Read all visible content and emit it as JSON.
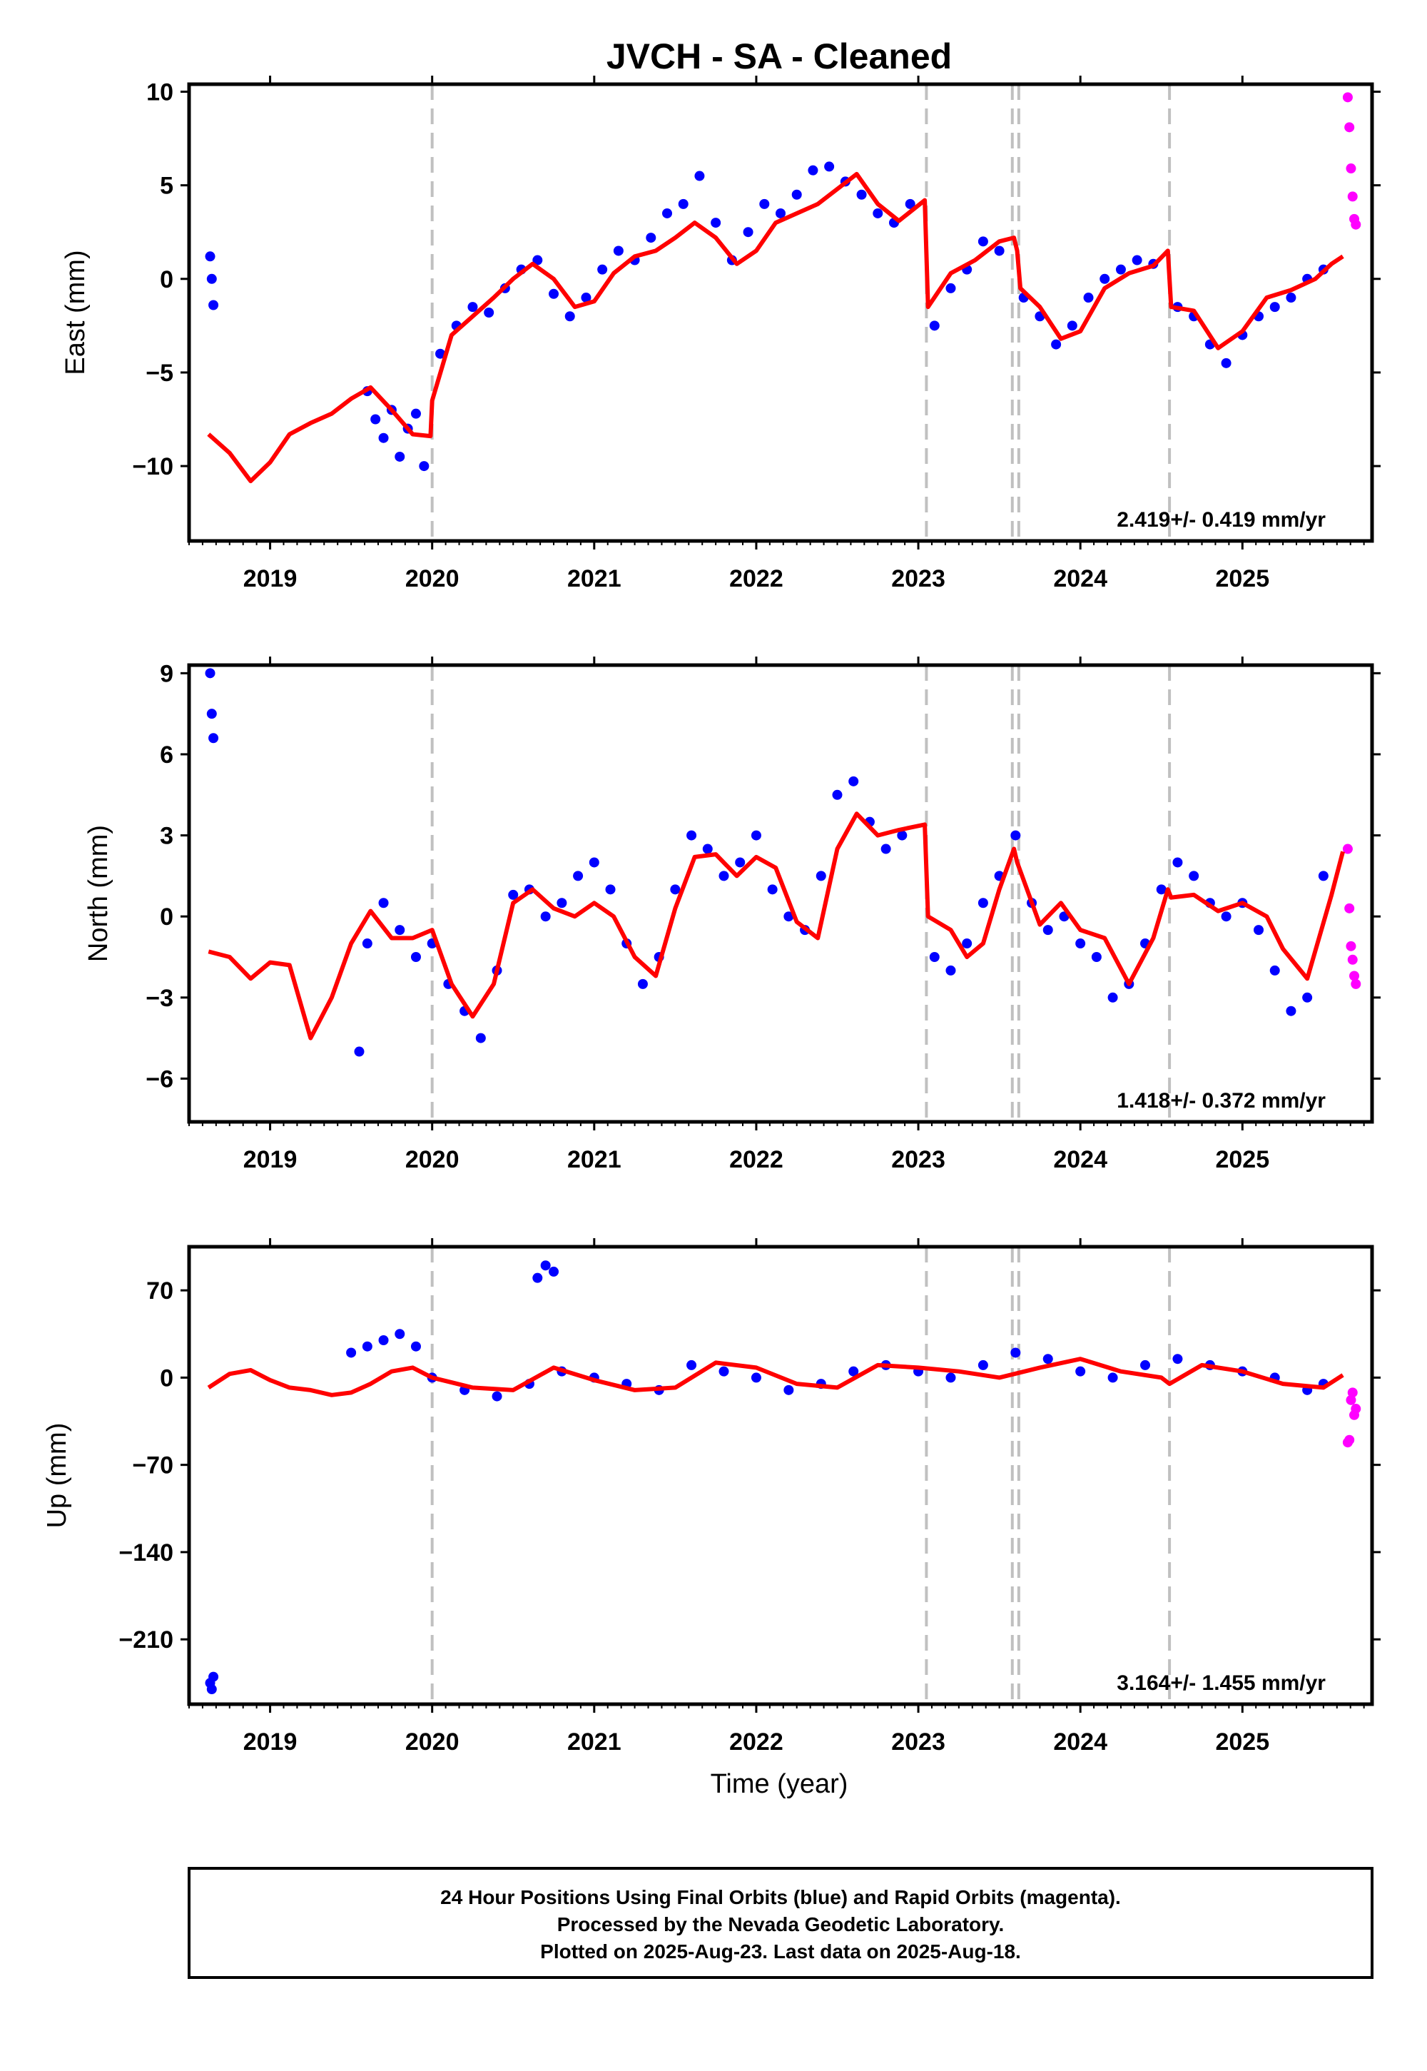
{
  "title": "JVCH  - SA - Cleaned",
  "xlabel": "Time (year)",
  "footer": {
    "line1": "24 Hour Positions Using Final Orbits (blue) and Rapid Orbits (magenta).",
    "line2": "Processed by the Nevada Geodetic Laboratory.",
    "line3": "Plotted on 2025-Aug-23. Last data on 2025-Aug-18."
  },
  "colors": {
    "final_orbits": "#0000ff",
    "rapid_orbits": "#ff00ff",
    "model": "#ff0000",
    "event_lines": "#c0c0c0"
  },
  "chart_data": [
    {
      "type": "scatter",
      "name": "east",
      "ylabel": "East (mm)",
      "rate": "2.419+/- 0.419 mm/yr",
      "xlim": [
        2018.5,
        2025.8
      ],
      "ylim": [
        -14,
        10.4
      ],
      "yticks": [
        10,
        5,
        0,
        -5,
        -10
      ],
      "ytick_labels": [
        "10",
        "5",
        "0",
        "−5",
        "−10"
      ],
      "xticks": [
        2019,
        2020,
        2021,
        2022,
        2023,
        2024,
        2025
      ],
      "event_lines": [
        2020.0,
        2023.05,
        2023.58,
        2023.62,
        2024.55
      ],
      "series": [
        {
          "name": "model",
          "x": [
            2018.62,
            2018.75,
            2018.88,
            2019.0,
            2019.12,
            2019.25,
            2019.38,
            2019.5,
            2019.62,
            2019.75,
            2019.88,
            2019.99,
            2020.0,
            2020.12,
            2020.25,
            2020.38,
            2020.5,
            2020.62,
            2020.75,
            2020.88,
            2021.0,
            2021.12,
            2021.25,
            2021.38,
            2021.5,
            2021.62,
            2021.75,
            2021.88,
            2022.0,
            2022.12,
            2022.25,
            2022.38,
            2022.5,
            2022.62,
            2022.75,
            2022.88,
            2023.04,
            2023.06,
            2023.2,
            2023.35,
            2023.5,
            2023.59,
            2023.61,
            2023.63,
            2023.75,
            2023.88,
            2024.0,
            2024.15,
            2024.3,
            2024.45,
            2024.54,
            2024.56,
            2024.7,
            2024.85,
            2025.0,
            2025.15,
            2025.3,
            2025.45,
            2025.55,
            2025.62
          ],
          "y": [
            -8.3,
            -9.3,
            -10.8,
            -9.8,
            -8.3,
            -7.7,
            -7.2,
            -6.4,
            -5.8,
            -7.0,
            -8.3,
            -8.4,
            -6.5,
            -3.0,
            -2.0,
            -1.0,
            0.0,
            0.8,
            0.0,
            -1.5,
            -1.2,
            0.3,
            1.2,
            1.5,
            2.2,
            3.0,
            2.2,
            0.8,
            1.5,
            3.0,
            3.5,
            4.0,
            4.8,
            5.6,
            4.0,
            3.1,
            4.2,
            -1.5,
            0.3,
            1.0,
            2.0,
            2.2,
            1.5,
            -0.5,
            -1.5,
            -3.2,
            -2.8,
            -0.5,
            0.3,
            0.7,
            1.5,
            -1.5,
            -1.7,
            -3.7,
            -2.8,
            -1.0,
            -0.6,
            0.0,
            0.8,
            1.2
          ]
        },
        {
          "name": "final_orbits",
          "x": [
            2018.63,
            2018.64,
            2018.65,
            2019.6,
            2019.65,
            2019.7,
            2019.75,
            2019.8,
            2019.85,
            2019.9,
            2019.95,
            2020.05,
            2020.15,
            2020.25,
            2020.35,
            2020.45,
            2020.55,
            2020.65,
            2020.75,
            2020.85,
            2020.95,
            2021.05,
            2021.15,
            2021.25,
            2021.35,
            2021.45,
            2021.55,
            2021.65,
            2021.75,
            2021.85,
            2021.95,
            2022.05,
            2022.15,
            2022.25,
            2022.35,
            2022.45,
            2022.55,
            2022.65,
            2022.75,
            2022.85,
            2022.95,
            2023.1,
            2023.2,
            2023.3,
            2023.4,
            2023.5,
            2023.65,
            2023.75,
            2023.85,
            2023.95,
            2024.05,
            2024.15,
            2024.25,
            2024.35,
            2024.45,
            2024.6,
            2024.7,
            2024.8,
            2024.9,
            2025.0,
            2025.1,
            2025.2,
            2025.3,
            2025.4,
            2025.5
          ],
          "y": [
            1.2,
            0.0,
            -1.4,
            -6.0,
            -7.5,
            -8.5,
            -7.0,
            -9.5,
            -8.0,
            -7.2,
            -10.0,
            -4.0,
            -2.5,
            -1.5,
            -1.8,
            -0.5,
            0.5,
            1.0,
            -0.8,
            -2.0,
            -1.0,
            0.5,
            1.5,
            1.0,
            2.2,
            3.5,
            4.0,
            5.5,
            3.0,
            1.0,
            2.5,
            4.0,
            3.5,
            4.5,
            5.8,
            6.0,
            5.2,
            4.5,
            3.5,
            3.0,
            4.0,
            -2.5,
            -0.5,
            0.5,
            2.0,
            1.5,
            -1.0,
            -2.0,
            -3.5,
            -2.5,
            -1.0,
            0.0,
            0.5,
            1.0,
            0.8,
            -1.5,
            -2.0,
            -3.5,
            -4.5,
            -3.0,
            -2.0,
            -1.5,
            -1.0,
            0.0,
            0.5
          ]
        },
        {
          "name": "rapid_orbits",
          "x": [
            2025.65,
            2025.66,
            2025.67,
            2025.68,
            2025.69,
            2025.7
          ],
          "y": [
            9.7,
            8.1,
            5.9,
            4.4,
            3.2,
            2.9
          ]
        }
      ]
    },
    {
      "type": "scatter",
      "name": "north",
      "ylabel": "North (mm)",
      "rate": "1.418+/- 0.372 mm/yr",
      "xlim": [
        2018.5,
        2025.8
      ],
      "ylim": [
        -7.6,
        9.3
      ],
      "yticks": [
        9,
        6,
        3,
        0,
        -3,
        -6
      ],
      "ytick_labels": [
        "9",
        "6",
        "3",
        "0",
        "−3",
        "−6"
      ],
      "xticks": [
        2019,
        2020,
        2021,
        2022,
        2023,
        2024,
        2025
      ],
      "event_lines": [
        2020.0,
        2023.05,
        2023.58,
        2023.62,
        2024.55
      ],
      "series": [
        {
          "name": "model",
          "x": [
            2018.62,
            2018.75,
            2018.88,
            2019.0,
            2019.12,
            2019.25,
            2019.38,
            2019.5,
            2019.62,
            2019.75,
            2019.88,
            2020.0,
            2020.12,
            2020.25,
            2020.38,
            2020.5,
            2020.62,
            2020.75,
            2020.88,
            2021.0,
            2021.12,
            2021.25,
            2021.38,
            2021.5,
            2021.62,
            2021.75,
            2021.88,
            2022.0,
            2022.12,
            2022.25,
            2022.38,
            2022.5,
            2022.62,
            2022.75,
            2022.88,
            2023.04,
            2023.06,
            2023.2,
            2023.3,
            2023.4,
            2023.5,
            2023.59,
            2023.61,
            2023.75,
            2023.88,
            2024.0,
            2024.15,
            2024.3,
            2024.45,
            2024.54,
            2024.56,
            2024.7,
            2024.85,
            2025.0,
            2025.15,
            2025.25,
            2025.4,
            2025.55,
            2025.62
          ],
          "y": [
            -1.3,
            -1.5,
            -2.3,
            -1.7,
            -1.8,
            -4.5,
            -3.0,
            -1.0,
            0.2,
            -0.8,
            -0.8,
            -0.5,
            -2.5,
            -3.7,
            -2.5,
            0.5,
            1.0,
            0.3,
            0.0,
            0.5,
            0.0,
            -1.5,
            -2.2,
            0.3,
            2.2,
            2.3,
            1.5,
            2.2,
            1.8,
            -0.2,
            -0.8,
            2.5,
            3.8,
            3.0,
            3.2,
            3.4,
            0.0,
            -0.5,
            -1.5,
            -1.0,
            1.0,
            2.5,
            2.0,
            -0.3,
            0.5,
            -0.5,
            -0.8,
            -2.5,
            -0.8,
            1.0,
            0.7,
            0.8,
            0.2,
            0.5,
            0.0,
            -1.2,
            -2.3,
            0.8,
            2.4
          ]
        },
        {
          "name": "final_orbits",
          "x": [
            2018.63,
            2018.64,
            2018.65,
            2019.55,
            2019.6,
            2019.7,
            2019.8,
            2019.9,
            2020.0,
            2020.1,
            2020.2,
            2020.3,
            2020.4,
            2020.5,
            2020.6,
            2020.7,
            2020.8,
            2020.9,
            2021.0,
            2021.1,
            2021.2,
            2021.3,
            2021.4,
            2021.5,
            2021.6,
            2021.7,
            2021.8,
            2021.9,
            2022.0,
            2022.1,
            2022.2,
            2022.3,
            2022.4,
            2022.5,
            2022.6,
            2022.7,
            2022.8,
            2022.9,
            2023.1,
            2023.2,
            2023.3,
            2023.4,
            2023.5,
            2023.6,
            2023.7,
            2023.8,
            2023.9,
            2024.0,
            2024.1,
            2024.2,
            2024.3,
            2024.4,
            2024.5,
            2024.6,
            2024.7,
            2024.8,
            2024.9,
            2025.0,
            2025.1,
            2025.2,
            2025.3,
            2025.4,
            2025.5
          ],
          "y": [
            9.0,
            7.5,
            6.6,
            -5.0,
            -1.0,
            0.5,
            -0.5,
            -1.5,
            -1.0,
            -2.5,
            -3.5,
            -4.5,
            -2.0,
            0.8,
            1.0,
            0.0,
            0.5,
            1.5,
            2.0,
            1.0,
            -1.0,
            -2.5,
            -1.5,
            1.0,
            3.0,
            2.5,
            1.5,
            2.0,
            3.0,
            1.0,
            0.0,
            -0.5,
            1.5,
            4.5,
            5.0,
            3.5,
            2.5,
            3.0,
            -1.5,
            -2.0,
            -1.0,
            0.5,
            1.5,
            3.0,
            0.5,
            -0.5,
            0.0,
            -1.0,
            -1.5,
            -3.0,
            -2.5,
            -1.0,
            1.0,
            2.0,
            1.5,
            0.5,
            0.0,
            0.5,
            -0.5,
            -2.0,
            -3.5,
            -3.0,
            1.5
          ]
        },
        {
          "name": "rapid_orbits",
          "x": [
            2025.65,
            2025.66,
            2025.67,
            2025.68,
            2025.69,
            2025.7
          ],
          "y": [
            2.5,
            0.3,
            -1.1,
            -1.6,
            -2.2,
            -2.5
          ]
        }
      ]
    },
    {
      "type": "scatter",
      "name": "up",
      "ylabel": "Up (mm)",
      "rate": "3.164+/- 1.455 mm/yr",
      "xlim": [
        2018.5,
        2025.8
      ],
      "ylim": [
        -262,
        105
      ],
      "yticks": [
        70,
        0,
        -70,
        -140,
        -210
      ],
      "ytick_labels": [
        "70",
        "0",
        "−70",
        "−140",
        "−210"
      ],
      "xticks": [
        2019,
        2020,
        2021,
        2022,
        2023,
        2024,
        2025
      ],
      "event_lines": [
        2020.0,
        2023.05,
        2023.58,
        2023.62,
        2024.55
      ],
      "series": [
        {
          "name": "model",
          "x": [
            2018.62,
            2018.75,
            2018.88,
            2019.0,
            2019.12,
            2019.25,
            2019.38,
            2019.5,
            2019.62,
            2019.75,
            2019.88,
            2020.0,
            2020.25,
            2020.5,
            2020.75,
            2021.0,
            2021.25,
            2021.5,
            2021.75,
            2022.0,
            2022.25,
            2022.5,
            2022.75,
            2023.0,
            2023.25,
            2023.5,
            2023.75,
            2024.0,
            2024.25,
            2024.5,
            2024.55,
            2024.75,
            2025.0,
            2025.25,
            2025.5,
            2025.62
          ],
          "y": [
            -8,
            3,
            6,
            -2,
            -8,
            -10,
            -14,
            -12,
            -5,
            5,
            8,
            0,
            -8,
            -10,
            8,
            -2,
            -10,
            -8,
            12,
            8,
            -5,
            -8,
            10,
            8,
            5,
            0,
            8,
            15,
            5,
            0,
            -5,
            10,
            5,
            -5,
            -8,
            2
          ]
        },
        {
          "name": "final_orbits",
          "x": [
            2018.63,
            2018.64,
            2018.65,
            2019.5,
            2019.6,
            2019.7,
            2019.8,
            2019.9,
            2020.0,
            2020.2,
            2020.4,
            2020.6,
            2020.65,
            2020.7,
            2020.75,
            2020.8,
            2021.0,
            2021.2,
            2021.4,
            2021.6,
            2021.8,
            2022.0,
            2022.2,
            2022.4,
            2022.6,
            2022.8,
            2023.0,
            2023.2,
            2023.4,
            2023.6,
            2023.8,
            2024.0,
            2024.2,
            2024.4,
            2024.6,
            2024.8,
            2025.0,
            2025.2,
            2025.4,
            2025.5
          ],
          "y": [
            -245,
            -250,
            -240,
            20,
            25,
            30,
            35,
            25,
            0,
            -10,
            -15,
            -5,
            80,
            90,
            85,
            5,
            0,
            -5,
            -10,
            10,
            5,
            0,
            -10,
            -5,
            5,
            10,
            5,
            0,
            10,
            20,
            15,
            5,
            0,
            10,
            15,
            10,
            5,
            0,
            -10,
            -5
          ]
        },
        {
          "name": "rapid_orbits",
          "x": [
            2025.65,
            2025.66,
            2025.67,
            2025.68,
            2025.69,
            2025.7
          ],
          "y": [
            -52,
            -50,
            -18,
            -12,
            -30,
            -25
          ]
        }
      ]
    }
  ]
}
